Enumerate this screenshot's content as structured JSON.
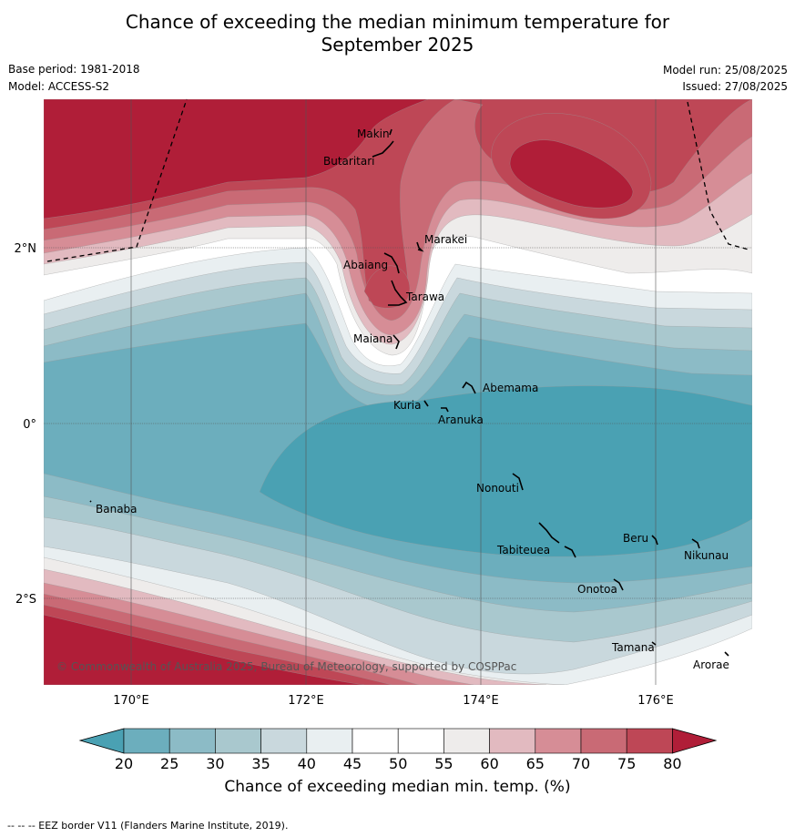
{
  "title_line1": "Chance of exceeding the median minimum temperature for",
  "title_line2": "September 2025",
  "base_period": "Base period: 1981-2018",
  "model": "Model: ACCESS-S2",
  "model_run": "Model run: 25/08/2025",
  "issued": "Issued: 27/08/2025",
  "copyright": "© Commonwealth of Australia 2025, Bureau of Meteorology, supported by COSPPac",
  "lat_labels": [
    "2°N",
    "0°",
    "2°S"
  ],
  "lon_labels": [
    "170°E",
    "172°E",
    "174°E",
    "176°E"
  ],
  "places": [
    "Makin",
    "Butaritari",
    "Marakei",
    "Abaiang",
    "Tarawa",
    "Maiana",
    "Abemama",
    "Kuria",
    "Aranuka",
    "Banaba",
    "Nonouti",
    "Beru",
    "Tabiteuea",
    "Nikunau",
    "Onotoa",
    "Tamana",
    "Arorae"
  ],
  "colorbar": {
    "ticks": [
      "20",
      "25",
      "30",
      "35",
      "40",
      "45",
      "50",
      "55",
      "60",
      "65",
      "70",
      "75",
      "80"
    ],
    "colors": [
      "#4aa1b3",
      "#6caebd",
      "#8cbbc6",
      "#a9c8ce",
      "#c9d8dd",
      "#e9eff1",
      "#ffffff",
      "#ffffff",
      "#eeeceb",
      "#e2bac0",
      "#d68d96",
      "#c96a75",
      "#be4756",
      "#b01e38"
    ],
    "label": "Chance of exceeding median min. temp. (%)"
  },
  "footer": "--  --  -- EEZ border V11 (Flanders Marine Institute, 2019)."
}
